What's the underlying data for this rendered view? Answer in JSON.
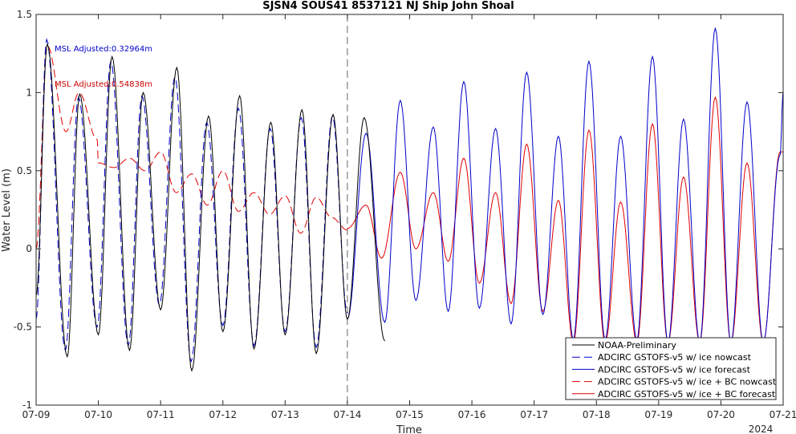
{
  "chart_data": {
    "type": "line",
    "title": "SJSN4 SOUS41 8537121 NJ Ship John Shoal",
    "xlabel": "Time",
    "ylabel": "Water Level (m)",
    "year_label": "2024",
    "xlim": [
      0,
      12
    ],
    "ylim": [
      -1,
      1.5
    ],
    "x_ticks": [
      {
        "v": 0,
        "label": "07-09"
      },
      {
        "v": 1,
        "label": "07-10"
      },
      {
        "v": 2,
        "label": "07-11"
      },
      {
        "v": 3,
        "label": "07-12"
      },
      {
        "v": 4,
        "label": "07-13"
      },
      {
        "v": 5,
        "label": "07-14"
      },
      {
        "v": 6,
        "label": "07-15"
      },
      {
        "v": 7,
        "label": "07-16"
      },
      {
        "v": 8,
        "label": "07-17"
      },
      {
        "v": 9,
        "label": "07-18"
      },
      {
        "v": 10,
        "label": "07-19"
      },
      {
        "v": 11,
        "label": "07-20"
      },
      {
        "v": 12,
        "label": "07-21"
      }
    ],
    "y_ticks": [
      {
        "v": -1,
        "label": "-1"
      },
      {
        "v": -0.5,
        "label": "-0.5"
      },
      {
        "v": 0,
        "label": "0"
      },
      {
        "v": 0.5,
        "label": "0.5"
      },
      {
        "v": 1,
        "label": "1"
      },
      {
        "v": 1.5,
        "label": "1.5"
      }
    ],
    "nowcast_divider_x": 5,
    "annotations": [
      {
        "text": "MSL Adjusted:0.32964m",
        "color": "#0000cc"
      },
      {
        "text": "MSL Adjusted:0.54838m",
        "color": "#cc0000"
      }
    ],
    "legend_position": "bottom-right",
    "series": [
      {
        "name": "NOAA-Preliminary",
        "color": "#000000",
        "dash": "solid",
        "x": [
          0,
          0.18,
          0.5,
          0.7,
          1.0,
          1.22,
          1.5,
          1.72,
          2.0,
          2.26,
          2.5,
          2.77,
          3.0,
          3.27,
          3.5,
          3.77,
          4.0,
          4.27,
          4.5,
          4.77,
          5.0,
          5.27,
          5.6
        ],
        "y": [
          -0.3,
          1.31,
          -0.69,
          0.99,
          -0.55,
          1.23,
          -0.65,
          1.0,
          -0.39,
          1.16,
          -0.78,
          0.85,
          -0.53,
          0.98,
          -0.64,
          0.81,
          -0.55,
          0.89,
          -0.67,
          0.86,
          -0.45,
          0.84,
          -0.59
        ]
      },
      {
        "name": "ADCIRC GSTOFS-v5 w/ ice nowcast",
        "color": "#0000cc",
        "dash": "dashed",
        "x": [
          0,
          0.17,
          0.47,
          0.68,
          0.98,
          1.2,
          1.48,
          1.7,
          1.98,
          2.23,
          2.49,
          2.74,
          3.0,
          3.25,
          3.5,
          3.76,
          4.0,
          4.26,
          4.5,
          4.76,
          5.0
        ],
        "y": [
          -0.45,
          1.34,
          -0.65,
          0.97,
          -0.5,
          1.2,
          -0.62,
          0.98,
          -0.36,
          1.1,
          -0.72,
          0.81,
          -0.49,
          0.9,
          -0.62,
          0.77,
          -0.53,
          0.84,
          -0.63,
          0.85,
          -0.41
        ]
      },
      {
        "name": "ADCIRC GSTOFS-v5 w/ ice forecast",
        "color": "#0000cc",
        "dash": "solid",
        "x": [
          5.0,
          5.3,
          5.6,
          5.85,
          6.1,
          6.38,
          6.62,
          6.87,
          7.12,
          7.38,
          7.63,
          7.88,
          8.14,
          8.39,
          8.63,
          8.88,
          9.14,
          9.39,
          9.65,
          9.9,
          10.15,
          10.4,
          10.66,
          10.91,
          11.16,
          11.42,
          11.68,
          11.95,
          12.0
        ],
        "y": [
          -0.45,
          0.74,
          -0.47,
          0.95,
          -0.33,
          0.78,
          -0.4,
          1.07,
          -0.38,
          0.77,
          -0.48,
          1.13,
          -0.42,
          0.72,
          -0.58,
          1.2,
          -0.58,
          0.72,
          -0.58,
          1.23,
          -0.6,
          0.83,
          -0.6,
          1.41,
          -0.6,
          0.94,
          -0.6,
          0.6,
          1.0
        ]
      },
      {
        "name": "ADCIRC GSTOFS-v5 w/ ice + BC nowcast",
        "color": "#e00000",
        "dash": "dashed",
        "x": [
          0.0,
          0.18,
          0.48,
          0.69,
          0.98,
          1.0,
          1.25,
          1.5,
          1.75,
          2.0,
          2.25,
          2.5,
          2.75,
          3.0,
          3.25,
          3.5,
          3.75,
          4.0,
          4.25,
          4.5,
          4.75,
          5.0
        ],
        "y": [
          0.0,
          1.3,
          0.75,
          1.0,
          0.7,
          0.55,
          0.52,
          0.58,
          0.5,
          0.62,
          0.36,
          0.48,
          0.28,
          0.5,
          0.24,
          0.36,
          0.22,
          0.34,
          0.1,
          0.33,
          0.2,
          0.12
        ]
      },
      {
        "name": "ADCIRC GSTOFS-v5 w/ ice + BC forecast",
        "color": "#e00000",
        "dash": "solid",
        "x": [
          5.0,
          5.3,
          5.55,
          5.85,
          6.1,
          6.38,
          6.62,
          6.87,
          7.12,
          7.38,
          7.63,
          7.88,
          8.14,
          8.39,
          8.63,
          8.88,
          9.14,
          9.39,
          9.65,
          9.9,
          10.15,
          10.4,
          10.66,
          10.91,
          11.16,
          11.42,
          11.68,
          11.95,
          12.0
        ],
        "y": [
          0.13,
          0.28,
          -0.06,
          0.49,
          0.0,
          0.36,
          -0.08,
          0.58,
          -0.22,
          0.36,
          -0.35,
          0.67,
          -0.4,
          0.31,
          -0.6,
          0.76,
          -0.6,
          0.3,
          -0.6,
          0.8,
          -0.6,
          0.46,
          -0.6,
          0.97,
          -0.6,
          0.55,
          -0.6,
          0.62,
          0.62
        ]
      }
    ]
  }
}
